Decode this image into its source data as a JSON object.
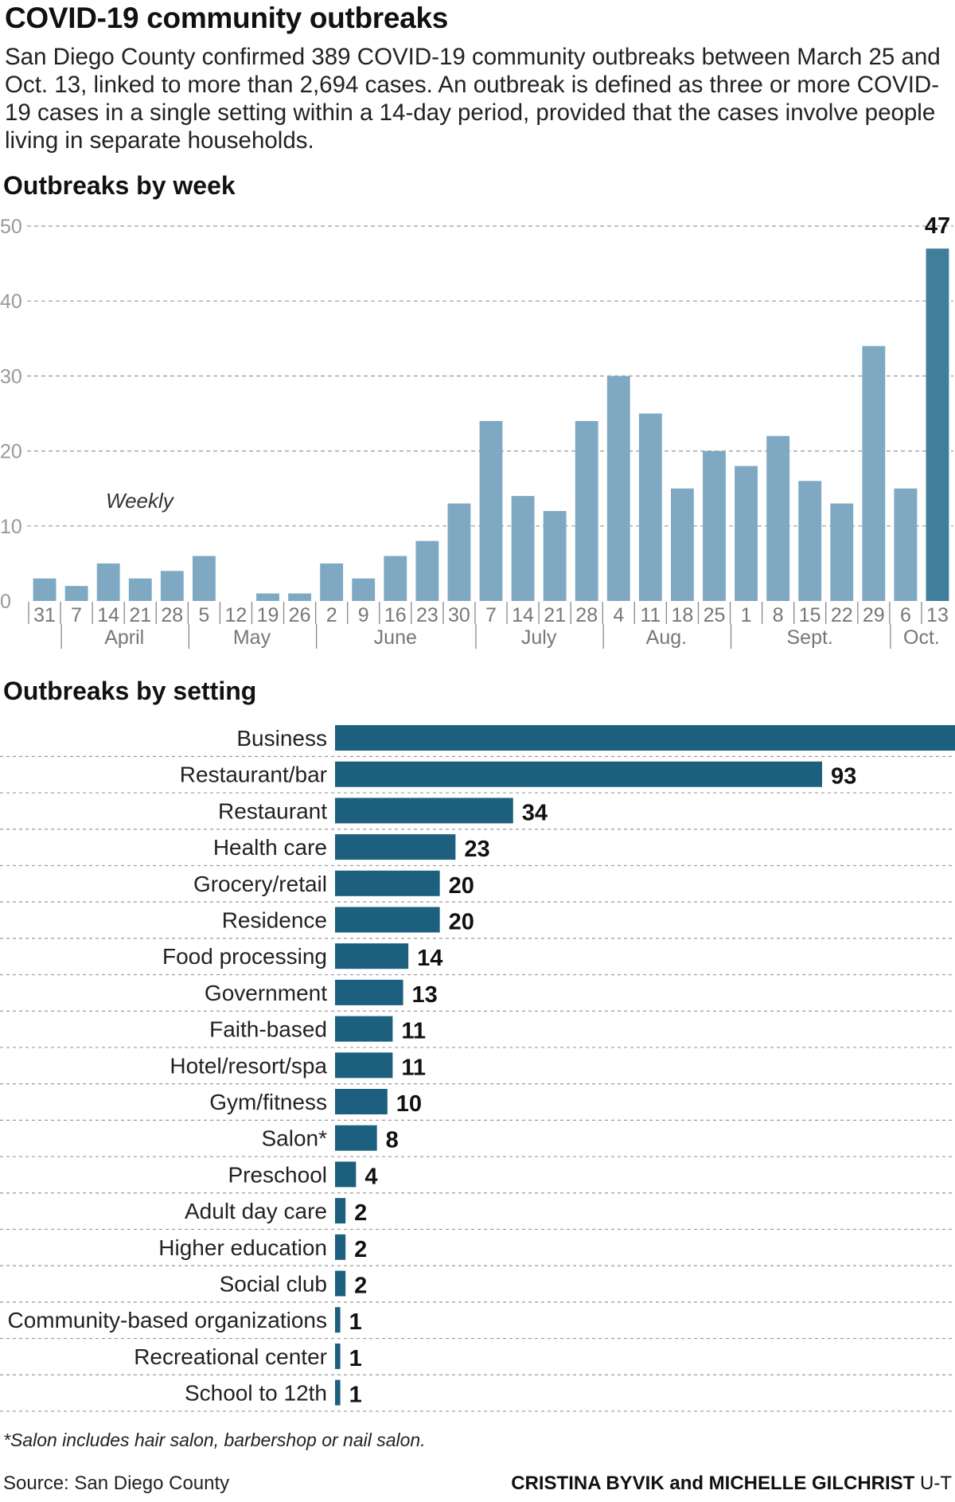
{
  "header": {
    "title": "COVID-19 community outbreaks",
    "dek": "San Diego County confirmed 389 COVID-19 community outbreaks between March 25 and Oct. 13, linked to more than 2,694 cases. An outbreak is defined as three or more COVID-19 cases in a single setting within a 14-day period, provided that the cases involve people living in separate households."
  },
  "chart_data": [
    {
      "type": "bar",
      "title": "Outbreaks by week",
      "annotation": "Weekly",
      "categories": [
        "31",
        "7",
        "14",
        "21",
        "28",
        "5",
        "12",
        "19",
        "26",
        "2",
        "9",
        "16",
        "23",
        "30",
        "7",
        "14",
        "21",
        "28",
        "4",
        "11",
        "18",
        "25",
        "1",
        "8",
        "15",
        "22",
        "29",
        "6",
        "13"
      ],
      "values": [
        3,
        2,
        5,
        3,
        4,
        6,
        0,
        1,
        1,
        5,
        3,
        6,
        8,
        13,
        24,
        14,
        12,
        24,
        30,
        25,
        15,
        20,
        18,
        22,
        16,
        13,
        34,
        15,
        47
      ],
      "month_labels": [
        "April",
        "May",
        "June",
        "July",
        "Aug.",
        "Sept.",
        "Oct."
      ],
      "month_starts": [
        1,
        5,
        9,
        14,
        18,
        22,
        27
      ],
      "yticks": [
        0,
        10,
        20,
        30,
        40,
        50
      ],
      "ylim": [
        0,
        50
      ],
      "grid": true,
      "highlight_label": "47",
      "colors": {
        "bar": "#7fa8c3",
        "highlight": "#3f7f9a",
        "grid": "#999999"
      }
    },
    {
      "type": "bar",
      "orientation": "horizontal",
      "title": "Outbreaks by setting",
      "categories": [
        "Business",
        "Restaurant/bar",
        "Restaurant",
        "Health care",
        "Grocery/retail",
        "Residence",
        "Food processing",
        "Government",
        "Faith-based",
        "Hotel/resort/spa",
        "Gym/fitness",
        "Salon*",
        "Preschool",
        "Adult day care",
        "Higher education",
        "Social club",
        "Community-based organizations",
        "Recreational center",
        "School to 12th"
      ],
      "values": [
        null,
        93,
        34,
        23,
        20,
        20,
        14,
        13,
        11,
        11,
        10,
        8,
        4,
        2,
        2,
        2,
        1,
        1,
        1
      ],
      "value_labels": [
        "",
        "93",
        "34",
        "23",
        "20",
        "20",
        "14",
        "13",
        "11",
        "11",
        "10",
        "8",
        "4",
        "2",
        "2",
        "2",
        "1",
        "1",
        "1"
      ],
      "colors": {
        "bar": "#1c5f7e"
      }
    }
  ],
  "footer": {
    "footnote": "*Salon includes hair salon, barbershop or nail salon.",
    "source": "Source: San Diego County",
    "credit_names": "CRISTINA BYVIK and MICHELLE GILCHRIST",
    "credit_org": "U-T"
  }
}
